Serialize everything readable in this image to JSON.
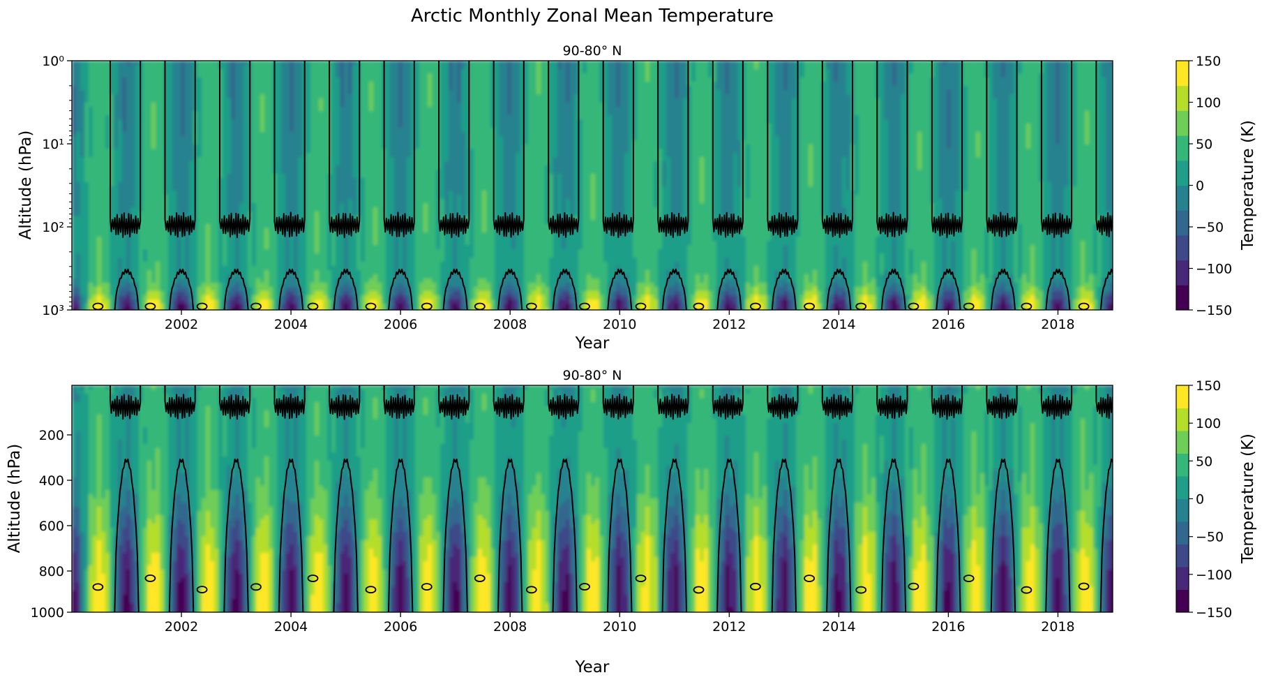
{
  "figure": {
    "suptitle": "Arctic Monthly Zonal Mean Temperature"
  },
  "colors": {
    "viridis_levels": [
      "#440154",
      "#482878",
      "#3e4989",
      "#31688e",
      "#26828e",
      "#1f9e89",
      "#35b779",
      "#6ece58",
      "#b5de2b",
      "#fde725"
    ],
    "contour": "#000000"
  },
  "chart_data": [
    {
      "type": "heatmap",
      "subtype": "filled-contour",
      "title": "90-80° N",
      "xlabel": "Year",
      "ylabel": "Altitude (hPa)",
      "yscale": "log",
      "xlim": [
        2000.0,
        2019.0
      ],
      "ylim": [
        1000,
        1
      ],
      "xticks": [
        2002,
        2004,
        2006,
        2008,
        2010,
        2012,
        2014,
        2016,
        2018
      ],
      "xtick_labels": [
        "2002",
        "2004",
        "2006",
        "2008",
        "2010",
        "2012",
        "2014",
        "2016",
        "2018"
      ],
      "ytick_labels": [
        "10⁰",
        "10¹",
        "10²",
        "10³"
      ],
      "colorbar": {
        "label": "Temperature (K)",
        "range": [
          -150,
          150
        ],
        "levels": [
          -150,
          -120,
          -90,
          -60,
          -30,
          0,
          30,
          60,
          90,
          120,
          150
        ],
        "tick_labels": [
          "150",
          "100",
          "50",
          "0",
          "−50",
          "−100",
          "−150"
        ]
      },
      "contour_level": 0
    },
    {
      "type": "heatmap",
      "subtype": "filled-contour",
      "title": "90-80° N",
      "xlabel": "Year",
      "ylabel": "Altitude (hPa)",
      "yscale": "linear",
      "xlim": [
        2000.0,
        2019.0
      ],
      "ylim": [
        1000,
        1
      ],
      "xticks": [
        2002,
        2004,
        2006,
        2008,
        2010,
        2012,
        2014,
        2016,
        2018
      ],
      "xtick_labels": [
        "2002",
        "2004",
        "2006",
        "2008",
        "2010",
        "2012",
        "2014",
        "2016",
        "2018"
      ],
      "yticks": [
        200,
        400,
        600,
        800,
        1000
      ],
      "ytick_labels": [
        "200",
        "400",
        "600",
        "800",
        "1000"
      ],
      "colorbar": {
        "label": "Temperature (K)",
        "range": [
          -150,
          150
        ],
        "levels": [
          -150,
          -120,
          -90,
          -60,
          -30,
          0,
          30,
          60,
          90,
          120,
          150
        ],
        "tick_labels": [
          "150",
          "100",
          "50",
          "0",
          "−50",
          "−100",
          "−150"
        ]
      },
      "contour_level": 0
    }
  ]
}
